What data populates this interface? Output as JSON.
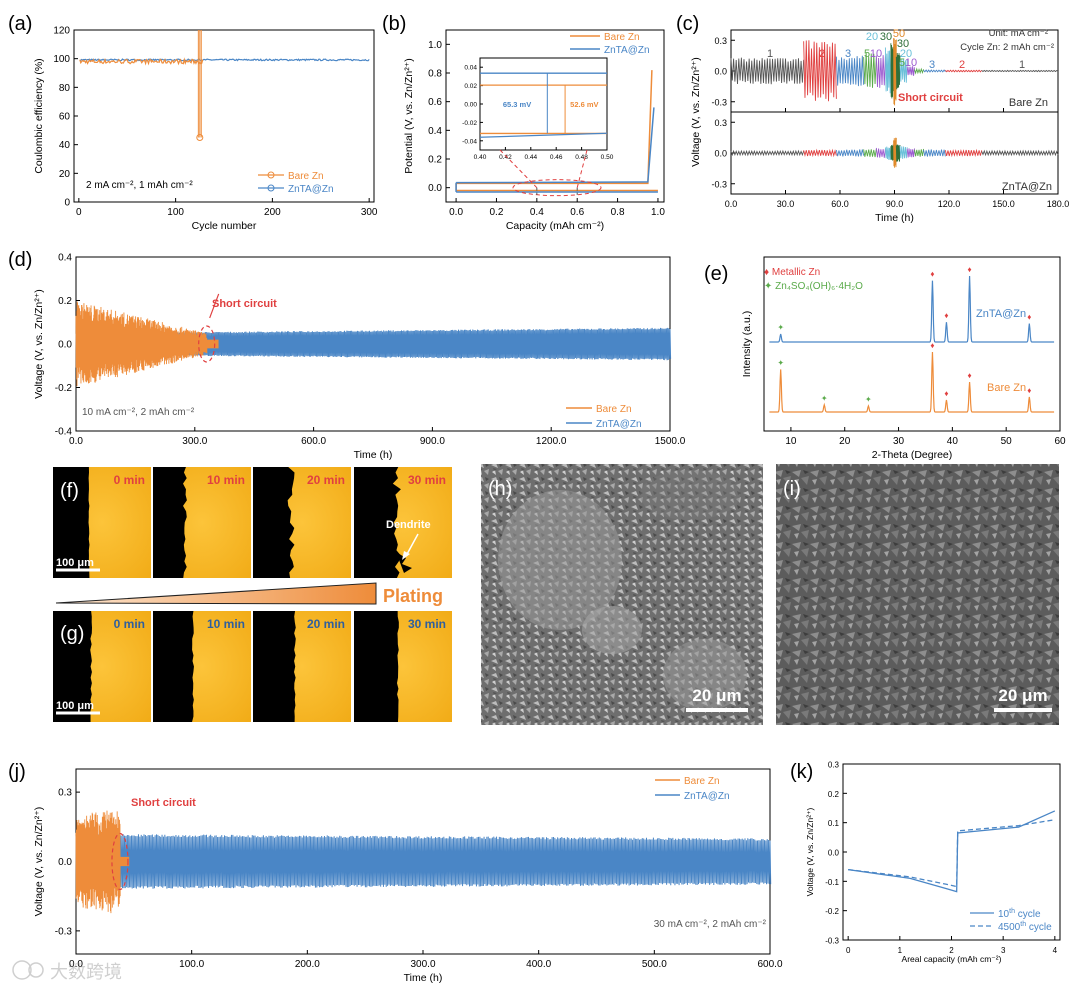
{
  "colors": {
    "bare": "#ee8c3a",
    "znta": "#4a86c6",
    "red": "#e04040",
    "green": "#5aaa4a",
    "micro_bg": "#f4b218"
  },
  "chart_data": [
    {
      "panel": "(a)",
      "type": "scatter",
      "xlabel": "Cycle number",
      "ylabel": "Coulombic efficiency (%)",
      "xlim": [
        0,
        300
      ],
      "ylim": [
        0,
        120
      ],
      "xticks": [
        0,
        100,
        200,
        300
      ],
      "yticks": [
        0,
        20,
        40,
        60,
        80,
        100,
        120
      ],
      "annotation": "2 mA cm⁻², 1 mAh cm⁻²",
      "series": [
        {
          "name": "Bare Zn",
          "value_range": [
            96,
            100
          ],
          "cycles": [
            1,
            128
          ],
          "anomaly": {
            "cycle": 125,
            "min": 45,
            "max": 120
          }
        },
        {
          "name": "ZnTA@Zn",
          "value_range": [
            98,
            100
          ],
          "cycles": [
            1,
            300
          ]
        }
      ]
    },
    {
      "panel": "(b)",
      "type": "line",
      "xlabel": "Capacity (mAh cm⁻²)",
      "ylabel": "Potential (V, vs. Zn/Zn²⁺)",
      "xlim": [
        0,
        1.0
      ],
      "ylim": [
        -0.1,
        1.1
      ],
      "xticks": [
        0.0,
        0.2,
        0.4,
        0.6,
        0.8,
        1.0
      ],
      "yticks": [
        0.0,
        0.2,
        0.4,
        0.6,
        0.8,
        1.0
      ],
      "series": [
        {
          "name": "Bare Zn",
          "strip": [
            [
              0,
              0.03
            ],
            [
              0.95,
              0.03
            ],
            [
              0.97,
              0.82
            ]
          ],
          "plate": [
            [
              0,
              -0.02
            ],
            [
              1.0,
              -0.02
            ]
          ]
        },
        {
          "name": "ZnTA@Zn",
          "strip": [
            [
              0,
              0.035
            ],
            [
              0.95,
              0.04
            ],
            [
              0.98,
              0.56
            ]
          ],
          "plate": [
            [
              0,
              -0.03
            ],
            [
              1.0,
              -0.03
            ]
          ]
        }
      ],
      "inset": {
        "xlim": [
          0.4,
          0.5
        ],
        "ylim": [
          -0.05,
          0.05
        ],
        "xticks": [
          0.4,
          0.42,
          0.44,
          0.46,
          0.48,
          0.5
        ],
        "yticks": [
          -0.04,
          -0.02,
          0.0,
          0.02,
          0.04
        ],
        "bare_levels": [
          0.0205,
          -0.032
        ],
        "znta_levels": [
          0.0335,
          -0.0318
        ],
        "labels": [
          "65.3 mV",
          "52.6 mV"
        ]
      }
    },
    {
      "panel": "(c)",
      "type": "line",
      "xlabel": "Time (h)",
      "ylabel": "Voltage (V, vs. Zn/Zn²⁺)",
      "xlim": [
        0,
        180
      ],
      "ylim": [
        -0.4,
        0.4
      ],
      "xticks": [
        0,
        30,
        60,
        90,
        120,
        150,
        180
      ],
      "yticks": [
        -0.3,
        0.0,
        0.3
      ],
      "unit_note": "Unit: mA cm⁻²",
      "cycle_note": "Cycle Zn: 2 mAh cm⁻²",
      "rate_labels": [
        "1",
        "2",
        "3",
        "5",
        "10",
        "20",
        "30",
        "50",
        "30",
        "20",
        "10",
        "5",
        "3",
        "2",
        "1"
      ],
      "top_label": "Bare Zn",
      "bottom_label": "ZnTA@Zn",
      "short_label": "Short circuit",
      "segments": [
        {
          "rate": 1,
          "start": 0,
          "end": 40,
          "bare_amp": 0.13,
          "znta_amp": 0.02
        },
        {
          "rate": 2,
          "start": 40,
          "end": 58,
          "bare_amp": 0.3,
          "znta_amp": 0.03
        },
        {
          "rate": 3,
          "start": 58,
          "end": 73,
          "bare_amp": 0.15,
          "znta_amp": 0.035
        },
        {
          "rate": 5,
          "start": 73,
          "end": 80,
          "bare_amp": 0.18,
          "znta_amp": 0.04
        },
        {
          "rate": 10,
          "start": 80,
          "end": 85,
          "bare_amp": 0.17,
          "znta_amp": 0.05
        },
        {
          "rate": 20,
          "start": 85,
          "end": 88,
          "bare_amp": 0.23,
          "znta_amp": 0.07
        },
        {
          "rate": 30,
          "start": 88,
          "end": 89.5,
          "bare_amp": 0.28,
          "znta_amp": 0.09
        },
        {
          "rate": 50,
          "start": 89.5,
          "end": 91,
          "bare_amp": 0.35,
          "znta_amp": 0.15
        },
        {
          "rate": 30,
          "start": 91,
          "end": 93,
          "bare_amp": 0.18,
          "znta_amp": 0.09
        },
        {
          "rate": 20,
          "start": 93,
          "end": 97,
          "bare_amp": 0.12,
          "znta_amp": 0.07
        },
        {
          "rate": 10,
          "start": 97,
          "end": 101,
          "bare_amp": 0.05,
          "znta_amp": 0.05
        },
        {
          "rate": 5,
          "start": 101,
          "end": 106,
          "bare_amp": 0.02,
          "znta_amp": 0.04
        },
        {
          "rate": 3,
          "start": 106,
          "end": 118,
          "bare_amp": 0.01,
          "znta_amp": 0.035
        },
        {
          "rate": 2,
          "start": 118,
          "end": 138,
          "bare_amp": 0.008,
          "znta_amp": 0.03
        },
        {
          "rate": 1,
          "start": 138,
          "end": 180,
          "bare_amp": 0.006,
          "znta_amp": 0.02
        }
      ]
    },
    {
      "panel": "(d)",
      "type": "line",
      "xlabel": "Time (h)",
      "ylabel": "Voltage (V, vs. Zn/Zn²⁺)",
      "xlim": [
        0,
        1500
      ],
      "ylim": [
        -0.4,
        0.4
      ],
      "xticks": [
        0,
        300,
        600,
        900,
        1200,
        1500
      ],
      "yticks": [
        -0.4,
        -0.2,
        0.0,
        0.2,
        0.4
      ],
      "annotation": "10 mA cm⁻², 2 mAh cm⁻²",
      "short_label": "Short circuit",
      "series": [
        {
          "name": "Bare Zn",
          "end_time": 330,
          "amplitude": [
            0.2,
            0.05
          ],
          "after_short": 0.02,
          "after_short_end": 360
        },
        {
          "name": "ZnTA@Zn",
          "end_time": 1500,
          "amplitude": [
            0.05,
            0.075
          ]
        }
      ]
    },
    {
      "panel": "(e)",
      "type": "line",
      "xlabel": "2-Theta (Degree)",
      "ylabel": "Intensity (a.u.)",
      "xlim": [
        5,
        60
      ],
      "xticks": [
        10,
        20,
        30,
        40,
        50,
        60
      ],
      "legend": [
        "♦ Metallic Zn",
        "Zn₄SO₄(OH)₆·4H₂O"
      ],
      "traces": [
        {
          "name": "ZnTA@Zn",
          "peaks": [
            {
              "x": 8.1,
              "h": 0.12
            },
            {
              "x": 36.3,
              "h": 0.93
            },
            {
              "x": 38.9,
              "h": 0.3
            },
            {
              "x": 43.2,
              "h": 1.0
            },
            {
              "x": 54.3,
              "h": 0.28
            }
          ]
        },
        {
          "name": "Bare Zn",
          "peaks": [
            {
              "x": 8.1,
              "h": 0.71
            },
            {
              "x": 16.2,
              "h": 0.12
            },
            {
              "x": 24.4,
              "h": 0.1
            },
            {
              "x": 36.3,
              "h": 1.0
            },
            {
              "x": 38.9,
              "h": 0.2
            },
            {
              "x": 43.2,
              "h": 0.5
            },
            {
              "x": 54.3,
              "h": 0.25
            }
          ]
        }
      ]
    },
    {
      "panel": "(j)",
      "type": "line",
      "xlabel": "Time (h)",
      "ylabel": "Voltage (V, vs. Zn/Zn²⁺)",
      "xlim": [
        0,
        600
      ],
      "ylim": [
        -0.4,
        0.4
      ],
      "xticks": [
        0,
        100,
        200,
        300,
        400,
        500,
        600
      ],
      "yticks": [
        -0.3,
        0.0,
        0.3
      ],
      "annotation": "30 mA cm⁻², 2 mAh cm⁻²",
      "short_label": "Short circuit",
      "series": [
        {
          "name": "Bare Zn",
          "end_time": 38,
          "amplitude": [
            0.2,
            0.23
          ],
          "after_short": 0.02,
          "after_short_end": 46
        },
        {
          "name": "ZnTA@Zn",
          "end_time": 600,
          "amplitude": [
            0.12,
            0.1
          ]
        }
      ]
    },
    {
      "panel": "(k)",
      "type": "line",
      "xlabel": "Areal capacity (mAh cm⁻²)",
      "ylabel": "Voltage (V, vs. Zn/Zn²⁺)",
      "xlim": [
        -0.1,
        4.1
      ],
      "ylim": [
        -0.3,
        0.3
      ],
      "xticks": [
        0,
        1,
        2,
        3,
        4
      ],
      "yticks": [
        -0.3,
        -0.2,
        -0.1,
        0.0,
        0.1,
        0.2,
        0.3
      ],
      "series": [
        {
          "name": "10th cycle",
          "style": "solid",
          "x": [
            0,
            1.2,
            1.9,
            2.1,
            2.12,
            3.3,
            4.0
          ],
          "y": [
            -0.06,
            -0.09,
            -0.125,
            -0.135,
            0.065,
            0.085,
            0.14
          ]
        },
        {
          "name": "4500th cycle",
          "style": "dashed",
          "x": [
            0,
            1.2,
            1.9,
            2.1,
            2.12,
            3.3,
            4.0
          ],
          "y": [
            -0.06,
            -0.085,
            -0.11,
            -0.118,
            0.072,
            0.09,
            0.11
          ]
        }
      ]
    }
  ],
  "panels": {
    "a": "(a)",
    "b": "(b)",
    "c": "(c)",
    "d": "(d)",
    "e": "(e)",
    "f": "(f)",
    "g": "(g)",
    "h": "(h)",
    "i": "(i)",
    "j": "(j)",
    "k": "(k)"
  },
  "legend_labels": {
    "bare": "Bare Zn",
    "znta": "ZnTA@Zn"
  },
  "legend_k": {
    "l10": "10",
    "l10sup": "th",
    "l10tail": " cycle",
    "l4500": "4500",
    "l4500sup": "th",
    "l4500tail": " cycle"
  },
  "micro": {
    "f_times": [
      "0 min",
      "10 min",
      "20 min",
      "30 min"
    ],
    "g_times": [
      "0 min",
      "10 min",
      "20 min",
      "30 min"
    ],
    "dendrite": "Dendrite",
    "scale_f": "100 μm",
    "scale_g": "100 μm",
    "plating": "Plating",
    "scale_h": "20 μm",
    "scale_i": "20 μm"
  },
  "watermark": "大数跨境"
}
